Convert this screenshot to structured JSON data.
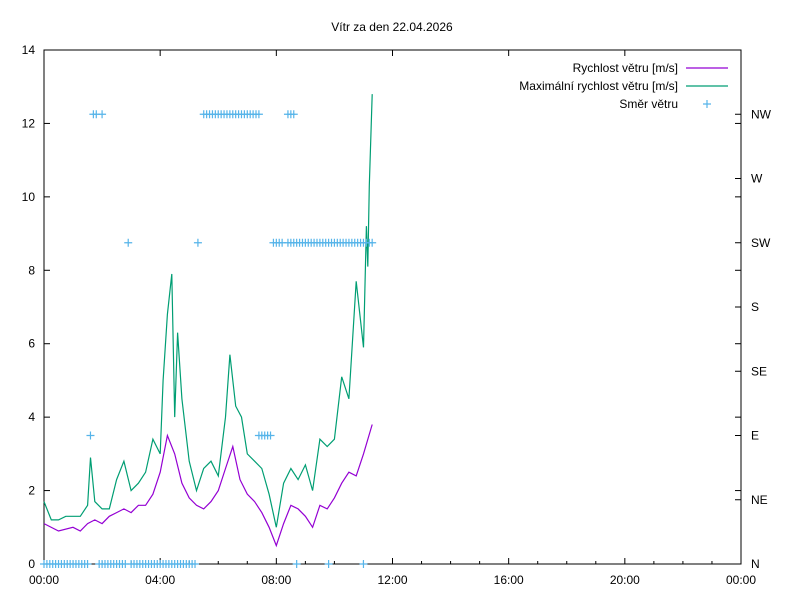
{
  "chart_data": {
    "type": "line",
    "title": "Vítr za den 22.04.2026",
    "xlabel": "",
    "ylabel": "",
    "xlim": [
      0,
      24
    ],
    "ylim": [
      0,
      14
    ],
    "y2lim": [
      0,
      360
    ],
    "x_ticks": [
      "00:00",
      "04:00",
      "08:00",
      "12:00",
      "16:00",
      "20:00",
      "00:00"
    ],
    "y_ticks": [
      "0",
      "2",
      "4",
      "6",
      "8",
      "10",
      "12",
      "14"
    ],
    "y2_ticks": [
      "N",
      "NE",
      "E",
      "SE",
      "S",
      "SW",
      "W",
      "NW"
    ],
    "grid": false,
    "legend_position": "top-right",
    "colors": {
      "speed": "#9400d3",
      "gust": "#009e73",
      "dir": "#56b4e9"
    },
    "series": [
      {
        "name": "Rychlost větru [m/s]",
        "x": [
          0,
          0.5,
          1,
          1.25,
          1.5,
          1.75,
          2,
          2.25,
          2.5,
          2.75,
          3,
          3.25,
          3.5,
          3.75,
          4,
          4.25,
          4.5,
          4.75,
          5,
          5.25,
          5.5,
          5.75,
          6,
          6.25,
          6.5,
          6.75,
          7,
          7.25,
          7.5,
          7.75,
          8,
          8.25,
          8.5,
          8.75,
          9,
          9.25,
          9.5,
          9.75,
          10,
          10.25,
          10.5,
          10.75,
          11,
          11.3
        ],
        "y": [
          1.1,
          0.9,
          1.0,
          0.9,
          1.1,
          1.2,
          1.1,
          1.3,
          1.4,
          1.5,
          1.4,
          1.6,
          1.6,
          1.9,
          2.5,
          3.5,
          3.0,
          2.2,
          1.8,
          1.6,
          1.5,
          1.7,
          2.0,
          2.6,
          3.2,
          2.3,
          1.9,
          1.7,
          1.4,
          1.0,
          0.5,
          1.1,
          1.6,
          1.5,
          1.3,
          1.0,
          1.6,
          1.5,
          1.8,
          2.2,
          2.5,
          2.4,
          3.0,
          3.8
        ]
      },
      {
        "name": "Maximální rychlost větru [m/s]",
        "x": [
          0,
          0.25,
          0.5,
          0.75,
          1,
          1.25,
          1.5,
          1.6,
          1.75,
          2,
          2.25,
          2.5,
          2.75,
          3,
          3.25,
          3.5,
          3.75,
          4,
          4.1,
          4.25,
          4.4,
          4.5,
          4.6,
          4.75,
          5,
          5.25,
          5.5,
          5.75,
          6,
          6.25,
          6.4,
          6.6,
          6.8,
          7,
          7.25,
          7.5,
          7.75,
          8,
          8.25,
          8.5,
          8.75,
          9,
          9.25,
          9.5,
          9.75,
          10,
          10.25,
          10.5,
          10.75,
          11,
          11.1,
          11.15,
          11.2,
          11.3
        ],
        "y": [
          1.7,
          1.2,
          1.2,
          1.3,
          1.3,
          1.3,
          1.6,
          2.9,
          1.7,
          1.5,
          1.5,
          2.3,
          2.8,
          2.0,
          2.2,
          2.5,
          3.4,
          3.0,
          5.0,
          6.8,
          7.9,
          4.0,
          6.3,
          4.5,
          2.8,
          2.0,
          2.6,
          2.8,
          2.4,
          4.0,
          5.7,
          4.3,
          4.0,
          3.0,
          2.8,
          2.6,
          1.9,
          1.0,
          2.2,
          2.6,
          2.3,
          2.7,
          2.0,
          3.4,
          3.2,
          3.4,
          5.1,
          4.5,
          7.7,
          5.9,
          9.2,
          8.1,
          10.3,
          12.8
        ]
      },
      {
        "name": "Směr větru",
        "axis": "y2",
        "points": [
          {
            "deg": 0,
            "times": [
              0,
              0.1,
              0.2,
              0.3,
              0.4,
              0.5,
              0.6,
              0.7,
              0.8,
              0.9,
              1.0,
              1.1,
              1.2,
              1.3,
              1.4,
              1.5,
              1.9,
              2.0,
              2.1,
              2.2,
              2.3,
              2.4,
              2.5,
              2.6,
              2.7,
              2.8,
              3.0,
              3.1,
              3.2,
              3.3,
              3.4,
              3.5,
              3.6,
              3.7,
              3.8,
              3.9,
              4.0,
              4.1,
              4.2,
              4.3,
              4.4,
              4.5,
              4.6,
              4.7,
              4.8,
              4.9,
              5.0,
              5.1,
              5.2,
              8.7,
              9.8,
              11.0
            ]
          },
          {
            "deg": 90,
            "times": [
              1.6,
              7.4,
              7.5,
              7.6,
              7.7,
              7.8
            ]
          },
          {
            "deg": 225,
            "times": [
              2.9,
              5.3,
              7.9,
              8.0,
              8.1,
              8.2,
              8.4,
              8.5,
              8.6,
              8.7,
              8.8,
              8.9,
              9.0,
              9.1,
              9.2,
              9.3,
              9.4,
              9.5,
              9.6,
              9.7,
              9.8,
              9.9,
              10.0,
              10.1,
              10.2,
              10.3,
              10.4,
              10.5,
              10.6,
              10.7,
              10.8,
              10.9,
              11.0,
              11.1,
              11.2,
              11.3
            ]
          },
          {
            "deg": 315,
            "times": [
              1.7,
              1.8,
              2.0,
              5.5,
              5.6,
              5.7,
              5.8,
              5.9,
              6.0,
              6.1,
              6.2,
              6.3,
              6.4,
              6.5,
              6.6,
              6.7,
              6.8,
              6.9,
              7.0,
              7.1,
              7.2,
              7.3,
              7.4,
              8.4,
              8.5,
              8.6
            ]
          }
        ]
      }
    ]
  }
}
